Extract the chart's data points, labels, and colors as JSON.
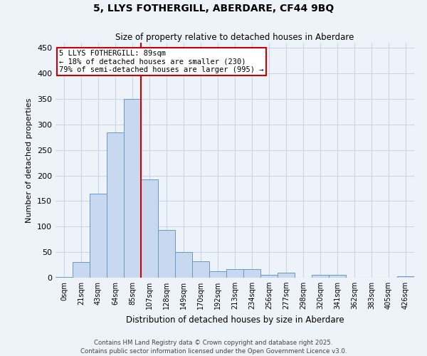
{
  "title_line1": "5, LLYS FOTHERGILL, ABERDARE, CF44 9BQ",
  "title_line2": "Size of property relative to detached houses in Aberdare",
  "xlabel": "Distribution of detached houses by size in Aberdare",
  "ylabel": "Number of detached properties",
  "bar_color": "#c8d8ee",
  "bar_edge_color": "#6699cc",
  "grid_color": "#c8d8e8",
  "background_color": "#eef3fa",
  "fig_background_color": "#eef3fa",
  "categories": [
    "0sqm",
    "21sqm",
    "43sqm",
    "64sqm",
    "85sqm",
    "107sqm",
    "128sqm",
    "149sqm",
    "170sqm",
    "192sqm",
    "213sqm",
    "234sqm",
    "256sqm",
    "277sqm",
    "298sqm",
    "320sqm",
    "341sqm",
    "362sqm",
    "383sqm",
    "405sqm",
    "426sqm"
  ],
  "values": [
    2,
    30,
    165,
    285,
    350,
    193,
    93,
    50,
    32,
    12,
    17,
    17,
    6,
    10,
    0,
    5,
    5,
    0,
    0,
    0,
    3
  ],
  "vline_color": "#cc0000",
  "vline_x": 4.5,
  "annotation_text": "5 LLYS FOTHERGILL: 89sqm\n← 18% of detached houses are smaller (230)\n79% of semi-detached houses are larger (995) →",
  "annotation_box_color": "#ffffff",
  "annotation_box_edge": "#cc0000",
  "ylim": [
    0,
    460
  ],
  "yticks": [
    0,
    50,
    100,
    150,
    200,
    250,
    300,
    350,
    400,
    450
  ],
  "footer_line1": "Contains HM Land Registry data © Crown copyright and database right 2025.",
  "footer_line2": "Contains public sector information licensed under the Open Government Licence v3.0."
}
